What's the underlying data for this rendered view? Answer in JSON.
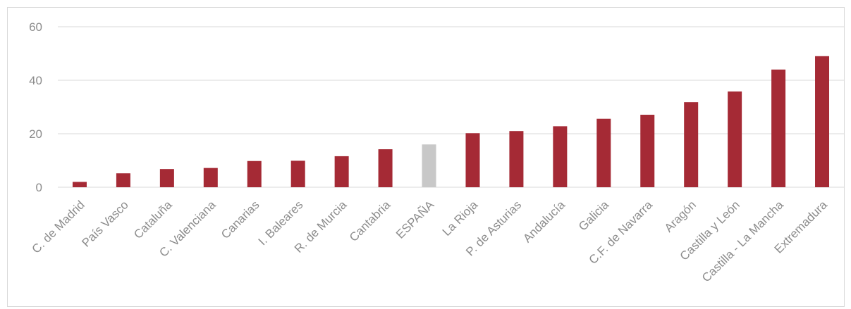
{
  "chart_data": {
    "type": "bar",
    "title": "",
    "xlabel": "",
    "ylabel": "",
    "ylim": [
      0,
      60
    ],
    "yticks": [
      0,
      20,
      40,
      60
    ],
    "grid": true,
    "legend": "none",
    "colors": {
      "default": "#a52a35",
      "highlight": "#c8c8c8"
    },
    "highlight_category": "ESPAÑA",
    "categories": [
      "C. de Madrid",
      "País Vasco",
      "Cataluña",
      "C. Valenciana",
      "Canarias",
      "I. Baleares",
      "R. de Murcia",
      "Cantabria",
      "ESPAÑA",
      "La Rioja",
      "P. de Asturias",
      "Andalucía",
      "Galicia",
      "C.F. de Navarra",
      "Aragón",
      "Castilla y León",
      "Castilla - La Mancha",
      "Extremadura"
    ],
    "values": [
      2,
      5.2,
      6.8,
      7.2,
      9.8,
      9.9,
      11.6,
      14.2,
      16,
      20.2,
      21,
      22.8,
      25.6,
      27.1,
      31.8,
      35.8,
      44,
      49
    ]
  }
}
